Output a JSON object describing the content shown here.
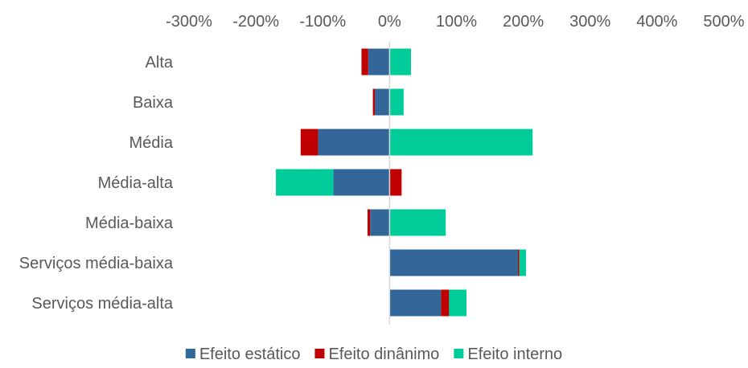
{
  "chart_data": {
    "type": "bar",
    "orientation": "horizontal",
    "stacked": true,
    "title": "",
    "xlabel": "",
    "ylabel": "",
    "xlim": [
      -300,
      500
    ],
    "x_ticks": [
      -300,
      -200,
      -100,
      0,
      100,
      200,
      300,
      400,
      500
    ],
    "x_tick_labels": [
      "-300%",
      "-200%",
      "-100%",
      "0%",
      "100%",
      "200%",
      "300%",
      "400%",
      "500%"
    ],
    "x_axis_position": "top",
    "grid": false,
    "legend_position": "bottom",
    "categories": [
      "Alta",
      "Baixa",
      "Média",
      "Média-alta",
      "Média-baixa",
      "Serviços média-baixa",
      "Serviços média-alta"
    ],
    "series": [
      {
        "name": "Efeito estático",
        "color": "#336699",
        "values": [
          -32,
          -22,
          -107,
          -84,
          -29,
          192,
          77
        ]
      },
      {
        "name": "Efeito dinânimo",
        "color": "#C00000",
        "values": [
          -10,
          -3,
          -26,
          18,
          -4,
          2,
          12
        ]
      },
      {
        "name": "Efeito interno",
        "color": "#00CC99",
        "values": [
          32,
          21,
          214,
          -86,
          84,
          10,
          26
        ]
      }
    ]
  }
}
